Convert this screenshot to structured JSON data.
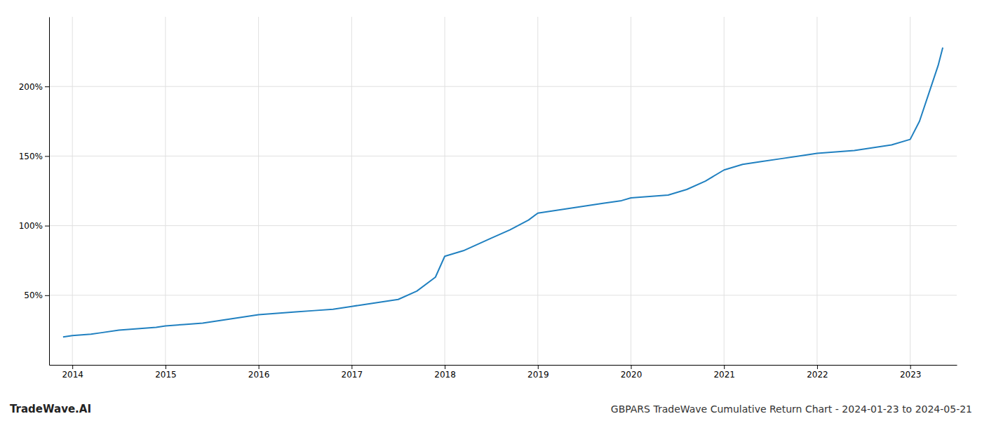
{
  "chart_data": {
    "type": "line",
    "title": "GBPARS TradeWave Cumulative Return Chart - 2024-01-23 to 2024-05-21",
    "annotations": [
      "TradeWave.AI"
    ],
    "color": "#2080c0",
    "grid": true,
    "x": [
      2013.9,
      2014.0,
      2014.1,
      2014.2,
      2014.3,
      2014.5,
      2014.7,
      2014.9,
      2015.0,
      2015.2,
      2015.4,
      2015.6,
      2015.8,
      2016.0,
      2016.2,
      2016.4,
      2016.6,
      2016.8,
      2017.0,
      2017.1,
      2017.2,
      2017.3,
      2017.5,
      2017.7,
      2017.9,
      2018.0,
      2018.1,
      2018.2,
      2018.3,
      2018.5,
      2018.7,
      2018.9,
      2019.0,
      2019.1,
      2019.2,
      2019.3,
      2019.5,
      2019.7,
      2019.9,
      2020.0,
      2020.2,
      2020.4,
      2020.6,
      2020.8,
      2021.0,
      2021.2,
      2021.4,
      2021.6,
      2021.8,
      2022.0,
      2022.2,
      2022.4,
      2022.6,
      2022.8,
      2023.0,
      2023.1,
      2023.2,
      2023.3,
      2023.35
    ],
    "values": [
      20,
      21,
      21.5,
      22,
      23,
      25,
      26,
      27,
      28,
      29,
      30,
      32,
      34,
      36,
      37,
      38,
      39,
      40,
      42,
      43,
      44,
      45,
      47,
      53,
      63,
      78,
      80,
      82,
      85,
      91,
      97,
      104,
      109,
      110,
      111,
      112,
      114,
      116,
      118,
      120,
      121,
      122,
      126,
      132,
      140,
      144,
      146,
      148,
      150,
      152,
      153,
      154,
      156,
      158,
      162,
      175,
      195,
      215,
      228
    ],
    "xlim": [
      2013.75,
      2023.5
    ],
    "xticks": [
      2014,
      2015,
      2016,
      2017,
      2018,
      2019,
      2020,
      2021,
      2022,
      2023
    ],
    "ylim": [
      0,
      250
    ],
    "yticks": [
      {
        "value": 50,
        "label": "50%"
      },
      {
        "value": 100,
        "label": "100%"
      },
      {
        "value": 150,
        "label": "150%"
      },
      {
        "value": 200,
        "label": "200%"
      }
    ]
  }
}
